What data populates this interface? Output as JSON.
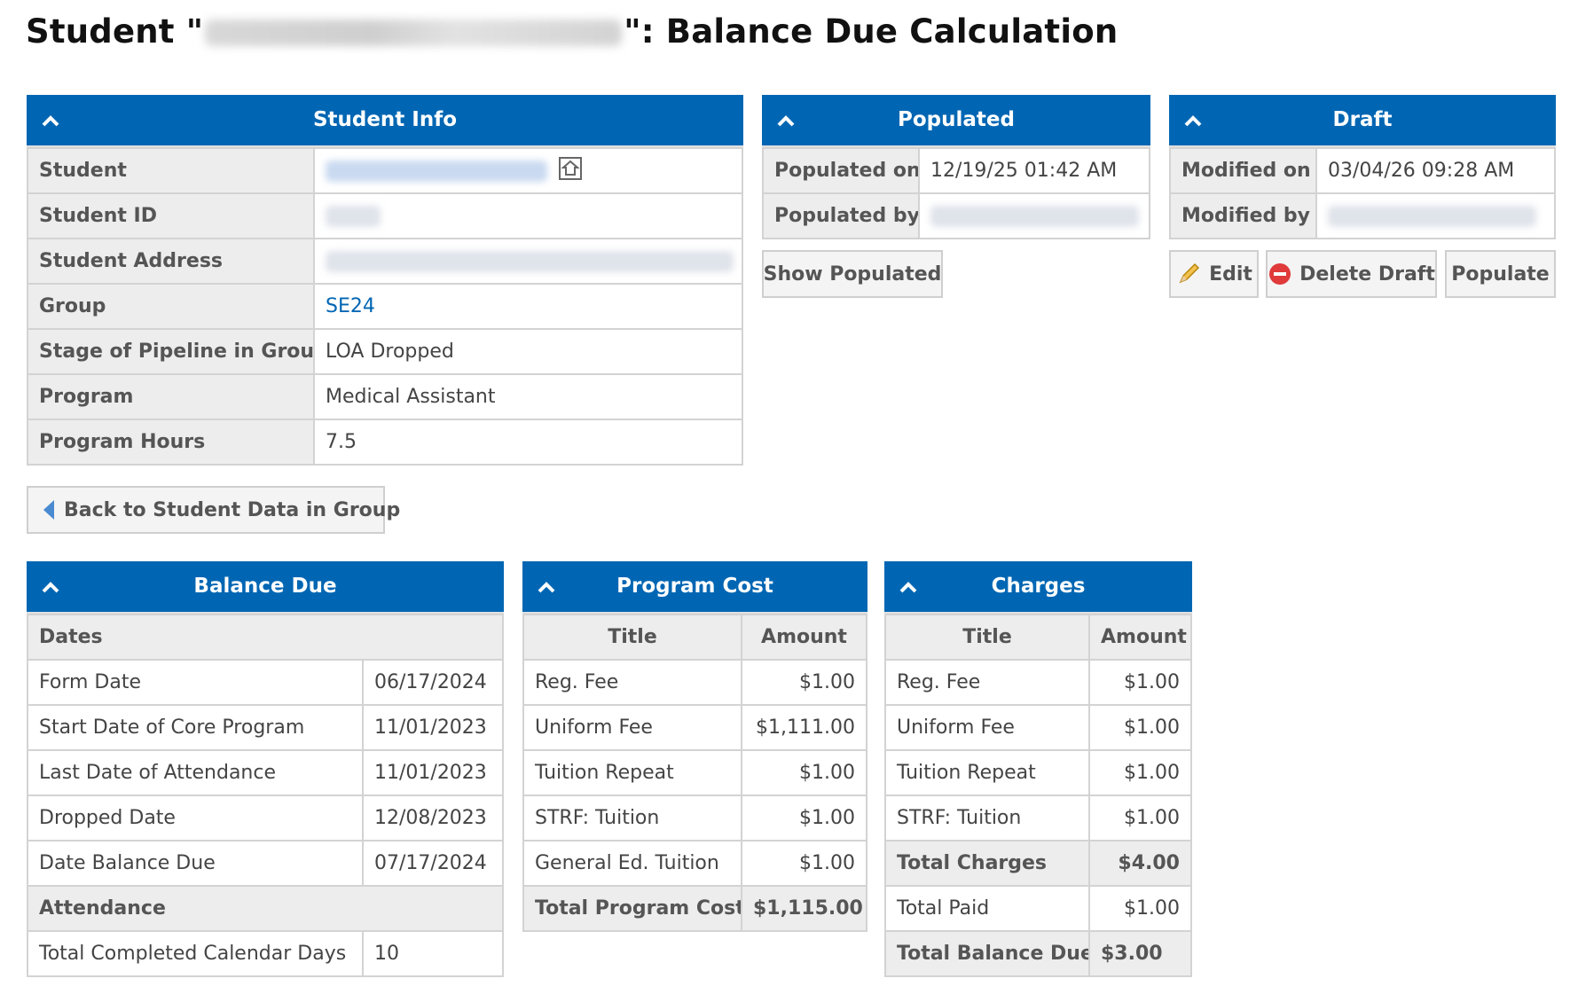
{
  "page": {
    "title_prefix": "Student \"",
    "title_suffix": "\": Balance Due Calculation"
  },
  "student_info": {
    "header": "Student Info",
    "rows": [
      {
        "label": "Student"
      },
      {
        "label": "Student ID"
      },
      {
        "label": "Student Address"
      },
      {
        "label": "Group",
        "value": "SE24"
      },
      {
        "label": "Stage of Pipeline in Group",
        "value": "LOA Dropped"
      },
      {
        "label": "Program",
        "value": "Medical Assistant"
      },
      {
        "label": "Program Hours",
        "value": "7.5"
      }
    ]
  },
  "populated": {
    "header": "Populated",
    "rows": [
      {
        "label": "Populated on",
        "value": "12/19/25 01:42 AM"
      },
      {
        "label": "Populated by"
      }
    ],
    "show_button": "Show Populated"
  },
  "draft": {
    "header": "Draft",
    "rows": [
      {
        "label": "Modified on",
        "value": "03/04/26 09:28 AM"
      },
      {
        "label": "Modified by"
      }
    ],
    "edit_button": "Edit",
    "delete_button": "Delete Draft",
    "populate_button": "Populate"
  },
  "back_button": "Back to Student Data in Group",
  "balance_due": {
    "header": "Balance Due",
    "dates_section": "Dates",
    "dates": [
      {
        "label": "Form Date",
        "value": "06/17/2024"
      },
      {
        "label": "Start Date of Core Program",
        "value": "11/01/2023"
      },
      {
        "label": "Last Date of Attendance",
        "value": "11/01/2023"
      },
      {
        "label": "Dropped Date",
        "value": "12/08/2023"
      },
      {
        "label": "Date Balance Due",
        "value": "07/17/2024"
      }
    ],
    "attendance_section": "Attendance",
    "attendance": [
      {
        "label": "Total Completed Calendar Days",
        "value": "10"
      }
    ]
  },
  "program_cost": {
    "header": "Program Cost",
    "col_title": "Title",
    "col_amount": "Amount",
    "rows": [
      {
        "title": "Reg. Fee",
        "amount": "$1.00"
      },
      {
        "title": "Uniform Fee",
        "amount": "$1,111.00"
      },
      {
        "title": "Tuition Repeat",
        "amount": "$1.00"
      },
      {
        "title": "STRF: Tuition",
        "amount": "$1.00"
      },
      {
        "title": "General Ed. Tuition",
        "amount": "$1.00"
      }
    ],
    "total_label": "Total Program Cost",
    "total_amount": "$1,115.00"
  },
  "charges": {
    "header": "Charges",
    "col_title": "Title",
    "col_amount": "Amount",
    "rows": [
      {
        "title": "Reg. Fee",
        "amount": "$1.00"
      },
      {
        "title": "Uniform Fee",
        "amount": "$1.00"
      },
      {
        "title": "Tuition Repeat",
        "amount": "$1.00"
      },
      {
        "title": "STRF: Tuition",
        "amount": "$1.00"
      }
    ],
    "total_charges_label": "Total Charges",
    "total_charges_amount": "$4.00",
    "total_paid_label": "Total Paid",
    "total_paid_amount": "$1.00",
    "total_balance_label": "Total Balance Due",
    "total_balance_amount": "$3.00"
  },
  "colors": {
    "header_blue": "#0066b3",
    "label_gray": "#ededed",
    "link_blue": "#0066b3"
  },
  "icons": [
    "chevron-up-icon",
    "home-icon",
    "pencil-icon",
    "delete-circle-icon",
    "back-arrow-icon"
  ]
}
